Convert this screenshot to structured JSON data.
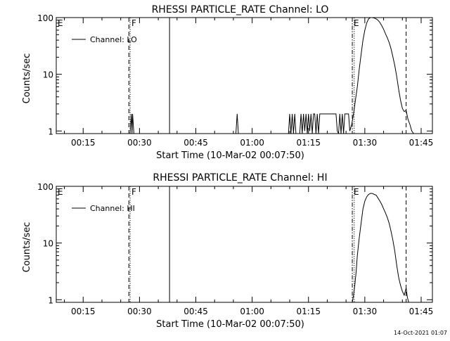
{
  "footer": {
    "timestamp": "14-Oct-2021 01:07"
  },
  "chart_data": [
    {
      "type": "line",
      "title": "RHESSI PARTICLE_RATE Channel: LO",
      "xlabel": "Start Time (10-Mar-02 00:07:50)",
      "ylabel": "Counts/sec",
      "yscale": "log",
      "xlim": [
        "00:07:50",
        "01:48:00"
      ],
      "ylim": [
        0.9,
        100
      ],
      "xticks": [
        "00:15",
        "00:30",
        "00:45",
        "01:00",
        "01:15",
        "01:30",
        "01:45"
      ],
      "yticks": [
        "1",
        "10",
        "100"
      ],
      "legend": {
        "placement": "top-left",
        "entries": [
          "Channel: LO"
        ]
      },
      "markers": [
        {
          "label": "E",
          "time": "00:07:50",
          "style": "none"
        },
        {
          "label": "F",
          "time": "00:27:30",
          "style": "dotted"
        },
        {
          "label": "",
          "time": "00:27:10",
          "style": "dashed"
        },
        {
          "label": "",
          "time": "00:38:00",
          "style": "solid"
        },
        {
          "label": "E",
          "time": "01:26:40",
          "style": "dash-dot"
        },
        {
          "label": "",
          "time": "01:27:10",
          "style": "dotted"
        },
        {
          "label": "",
          "time": "01:41:00",
          "style": "dashed"
        },
        {
          "label": "",
          "time": "01:48:00",
          "style": "dotted"
        }
      ],
      "series": [
        {
          "name": "Channel: LO",
          "x": [
            "00:27:30",
            "00:27:50",
            "00:28:00",
            "00:28:10",
            "00:28:30",
            "00:55:40",
            "00:56:00",
            "00:56:20",
            "01:09:40",
            "01:10:00",
            "01:10:20",
            "01:10:40",
            "01:11:00",
            "01:11:20",
            "01:11:40",
            "01:12:40",
            "01:13:00",
            "01:13:20",
            "01:13:40",
            "01:14:00",
            "01:14:20",
            "01:14:40",
            "01:15:00",
            "01:15:20",
            "01:15:40",
            "01:16:00",
            "01:16:20",
            "01:16:40",
            "01:17:00",
            "01:17:20",
            "01:17:40",
            "01:18:00",
            "01:18:20",
            "01:18:40",
            "01:19:00",
            "01:19:20",
            "01:19:40",
            "01:20:00",
            "01:20:20",
            "01:20:40",
            "01:21:00",
            "01:21:20",
            "01:21:40",
            "01:22:00",
            "01:22:20",
            "01:22:40",
            "01:23:00",
            "01:23:20",
            "01:23:40",
            "01:24:00",
            "01:24:20",
            "01:24:40",
            "01:25:00",
            "01:25:20",
            "01:25:40",
            "01:26:00",
            "01:26:30",
            "01:27:00",
            "01:27:30",
            "01:28:00",
            "01:28:30",
            "01:29:00",
            "01:29:30",
            "01:30:00",
            "01:30:30",
            "01:31:00",
            "01:31:30",
            "01:32:00",
            "01:32:30",
            "01:33:00",
            "01:33:30",
            "01:34:00",
            "01:34:30",
            "01:35:00",
            "01:35:30",
            "01:36:00",
            "01:36:30",
            "01:37:00",
            "01:37:30",
            "01:38:00",
            "01:38:30",
            "01:39:00",
            "01:39:30",
            "01:40:00",
            "01:40:30",
            "01:41:00",
            "01:41:30",
            "01:42:00",
            "01:42:30",
            "01:43:00"
          ],
          "y": [
            0.9,
            2,
            0.9,
            2,
            0.9,
            0.9,
            2,
            0.9,
            0.9,
            2,
            0.9,
            2,
            0.9,
            2,
            0.9,
            0.9,
            2,
            0.9,
            2,
            1,
            2,
            0.9,
            2,
            1,
            2,
            0.9,
            2,
            2,
            0.9,
            2,
            0.9,
            2,
            2,
            2,
            2,
            2,
            2,
            2,
            2,
            2,
            2,
            2,
            2,
            2,
            2,
            1,
            0.9,
            2,
            0.9,
            2,
            0.9,
            2,
            2,
            2,
            2,
            1,
            1.3,
            2,
            3.5,
            6,
            12,
            22,
            40,
            60,
            80,
            95,
            100,
            100,
            98,
            95,
            90,
            82,
            72,
            62,
            52,
            44,
            36,
            28,
            20,
            14,
            9,
            5.5,
            3.5,
            2.5,
            2.2,
            2.3,
            1.6,
            1.3,
            1,
            0.9
          ]
        }
      ]
    },
    {
      "type": "line",
      "title": "RHESSI PARTICLE_RATE Channel: HI",
      "xlabel": "Start Time (10-Mar-02 00:07:50)",
      "ylabel": "Counts/sec",
      "yscale": "log",
      "xlim": [
        "00:07:50",
        "01:48:00"
      ],
      "ylim": [
        0.9,
        100
      ],
      "xticks": [
        "00:15",
        "00:30",
        "00:45",
        "01:00",
        "01:15",
        "01:30",
        "01:45"
      ],
      "yticks": [
        "1",
        "10",
        "100"
      ],
      "legend": {
        "placement": "top-left",
        "entries": [
          "Channel: HI"
        ]
      },
      "markers": [
        {
          "label": "E",
          "time": "00:07:50",
          "style": "none"
        },
        {
          "label": "F",
          "time": "00:27:30",
          "style": "dotted"
        },
        {
          "label": "",
          "time": "00:27:10",
          "style": "dashed"
        },
        {
          "label": "",
          "time": "00:38:00",
          "style": "solid"
        },
        {
          "label": "E",
          "time": "01:26:40",
          "style": "dash-dot"
        },
        {
          "label": "",
          "time": "01:27:10",
          "style": "dotted"
        },
        {
          "label": "",
          "time": "01:41:00",
          "style": "dashed"
        },
        {
          "label": "",
          "time": "01:48:00",
          "style": "dotted"
        }
      ],
      "series": [
        {
          "name": "Channel: HI",
          "x": [
            "01:26:40",
            "01:27:00",
            "01:27:20",
            "01:27:40",
            "01:28:00",
            "01:28:30",
            "01:29:00",
            "01:29:30",
            "01:30:00",
            "01:30:30",
            "01:31:00",
            "01:31:30",
            "01:32:00",
            "01:32:30",
            "01:33:00",
            "01:33:30",
            "01:34:00",
            "01:34:30",
            "01:35:00",
            "01:35:30",
            "01:36:00",
            "01:36:30",
            "01:37:00",
            "01:37:30",
            "01:38:00",
            "01:38:30",
            "01:39:00",
            "01:39:30",
            "01:40:00",
            "01:40:30",
            "01:41:00",
            "01:41:20",
            "01:41:40"
          ],
          "y": [
            0.9,
            1.2,
            1.8,
            3,
            6,
            12,
            22,
            40,
            55,
            65,
            72,
            75,
            75,
            72,
            70,
            62,
            55,
            48,
            40,
            34,
            28,
            22,
            16,
            11,
            7,
            4,
            2.5,
            1.8,
            1.4,
            1.2,
            1.6,
            1.1,
            0.9
          ]
        }
      ]
    }
  ]
}
